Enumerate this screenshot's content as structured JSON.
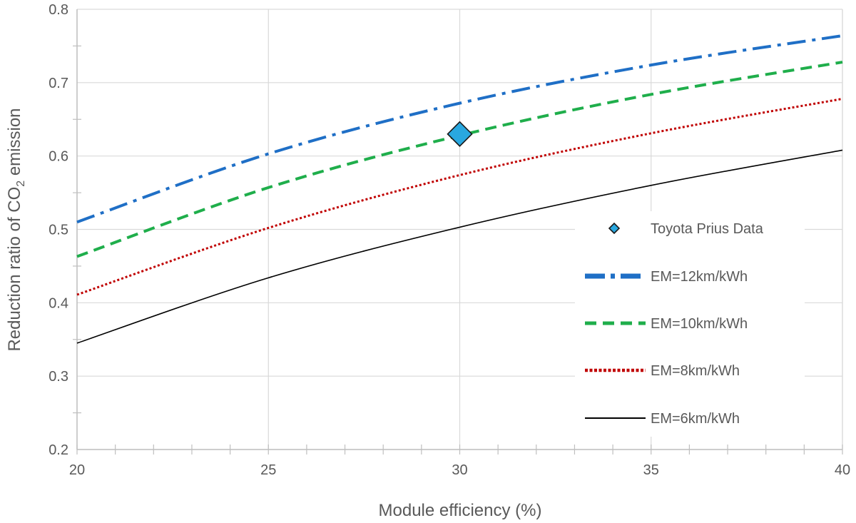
{
  "chart_data": {
    "type": "line",
    "xlabel": "Module efficiency (%)",
    "ylabel_prefix": "Reduction ratio of CO",
    "ylabel_sub": "2",
    "ylabel_suffix": " emission",
    "xlim": [
      20,
      40
    ],
    "ylim": [
      0.2,
      0.8
    ],
    "x_major_ticks": [
      20,
      25,
      30,
      35,
      40
    ],
    "x_minor_step": 1,
    "y_ticks": [
      0.2,
      0.3,
      0.4,
      0.5,
      0.6,
      0.7,
      0.8
    ],
    "y_tick_labels": [
      "0.2",
      "0.3",
      "0.4",
      "0.5",
      "0.6",
      "0.7",
      "0.8"
    ],
    "x_tick_labels": [
      "20",
      "25",
      "30",
      "35",
      "40"
    ],
    "grid": true,
    "legend_position": "right",
    "x": [
      20,
      25,
      30,
      35,
      40
    ],
    "series": [
      {
        "name": "EM=12km/kWh",
        "values": [
          0.51,
          0.603,
          0.672,
          0.724,
          0.764
        ],
        "color": "#1f6fc6",
        "style": "dashdot"
      },
      {
        "name": "EM=10km/kWh",
        "values": [
          0.463,
          0.557,
          0.628,
          0.684,
          0.728
        ],
        "color": "#1fae4b",
        "style": "dashed"
      },
      {
        "name": "EM=8km/kWh",
        "values": [
          0.411,
          0.502,
          0.574,
          0.631,
          0.678
        ],
        "color": "#c00000",
        "style": "dotted"
      },
      {
        "name": "EM=6km/kWh",
        "values": [
          0.345,
          0.434,
          0.503,
          0.56,
          0.608
        ],
        "color": "#000000",
        "style": "solid"
      }
    ],
    "points": [
      {
        "name": "Toyota Prius Data",
        "x": 30,
        "y": 0.63,
        "color": "#29a8e0",
        "marker": "diamond"
      }
    ],
    "legend_order": [
      "Toyota Prius Data",
      "EM=12km/kWh",
      "EM=10km/kWh",
      "EM=8km/kWh",
      "EM=6km/kWh"
    ]
  }
}
